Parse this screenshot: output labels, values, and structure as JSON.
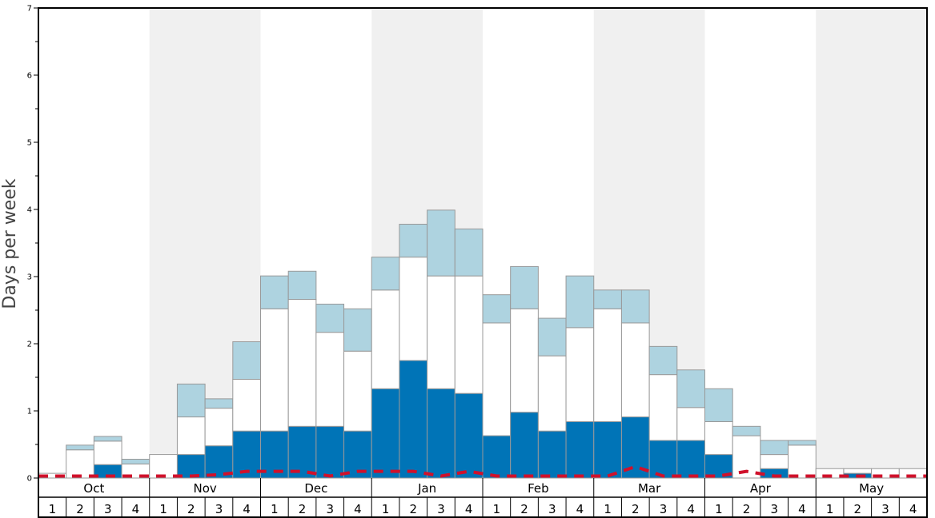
{
  "chart_data": {
    "type": "bar",
    "title": "",
    "xlabel": "",
    "ylabel": "Days per week",
    "ylim": [
      0,
      7
    ],
    "y_ticks": [
      "0",
      "1",
      "2",
      "3",
      "4",
      "5",
      "6",
      "7"
    ],
    "months": [
      "Oct",
      "Nov",
      "Dec",
      "Jan",
      "Feb",
      "Mar",
      "Apr",
      "May"
    ],
    "week_labels": [
      "1",
      "2",
      "3",
      "4"
    ],
    "stacked": true,
    "colors": {
      "dark": "#0074b7",
      "mid": "#ffffff",
      "light": "#aed3e0",
      "line": "#d0112b",
      "band": "#f0f0f0",
      "bar_border": "#999999"
    },
    "categories": [
      "Oct-1",
      "Oct-2",
      "Oct-3",
      "Oct-4",
      "Nov-1",
      "Nov-2",
      "Nov-3",
      "Nov-4",
      "Dec-1",
      "Dec-2",
      "Dec-3",
      "Dec-4",
      "Jan-1",
      "Jan-2",
      "Jan-3",
      "Jan-4",
      "Feb-1",
      "Feb-2",
      "Feb-3",
      "Feb-4",
      "Mar-1",
      "Mar-2",
      "Mar-3",
      "Mar-4",
      "Apr-1",
      "Apr-2",
      "Apr-3",
      "Apr-4",
      "May-1",
      "May-2",
      "May-3",
      "May-4"
    ],
    "series": [
      {
        "values": [
          0,
          0,
          0.2,
          0,
          0,
          0.35,
          0.48,
          0.7,
          0.7,
          0.77,
          0.77,
          0.7,
          1.33,
          1.75,
          1.33,
          1.26,
          0.63,
          0.98,
          0.7,
          0.84,
          0.84,
          0.91,
          0.56,
          0.56,
          0.35,
          0,
          0.14,
          0,
          0,
          0.07,
          0,
          0
        ]
      },
      {
        "values": [
          0.07,
          0.42,
          0.35,
          0.21,
          0.35,
          0.56,
          0.56,
          0.77,
          1.82,
          1.89,
          1.4,
          1.19,
          1.47,
          1.54,
          1.68,
          1.75,
          1.68,
          1.54,
          1.12,
          1.4,
          1.68,
          1.4,
          0.98,
          0.49,
          0.49,
          0.63,
          0.21,
          0.49,
          0.14,
          0.07,
          0.14,
          0.14
        ]
      },
      {
        "values": [
          0,
          0.07,
          0.07,
          0.07,
          0,
          0.49,
          0.14,
          0.56,
          0.49,
          0.42,
          0.42,
          0.63,
          0.49,
          0.49,
          0.98,
          0.7,
          0.42,
          0.63,
          0.56,
          0.77,
          0.28,
          0.49,
          0.42,
          0.56,
          0.49,
          0.14,
          0.21,
          0.07,
          0,
          0,
          0,
          0
        ]
      },
      {
        "type": "line",
        "dashed": true,
        "values": [
          0.03,
          0.03,
          0.03,
          0.03,
          0.03,
          0.03,
          0.05,
          0.1,
          0.1,
          0.1,
          0.03,
          0.1,
          0.1,
          0.1,
          0.03,
          0.1,
          0.03,
          0.03,
          0.03,
          0.03,
          0.03,
          0.17,
          0.03,
          0.03,
          0.03,
          0.1,
          0.03,
          0.03,
          0.03,
          0.03,
          0.03,
          0.03
        ]
      }
    ]
  }
}
